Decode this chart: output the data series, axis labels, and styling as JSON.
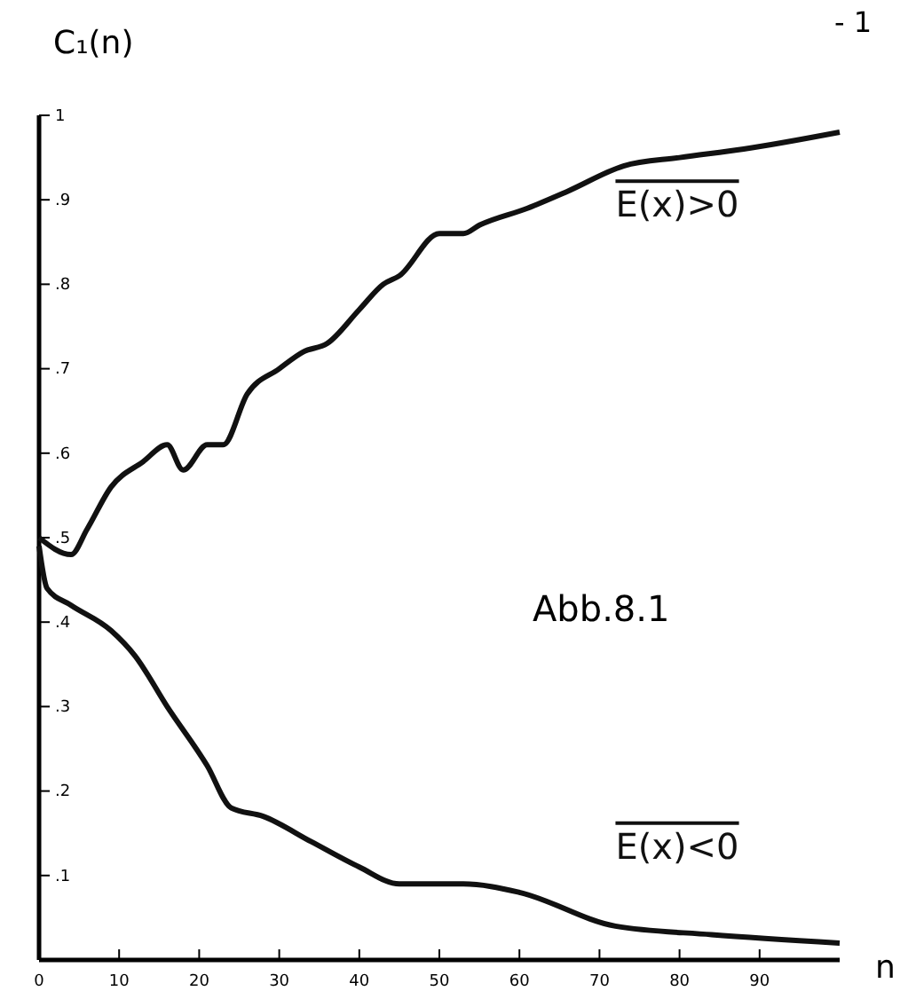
{
  "chart_data": {
    "type": "line",
    "xlabel": "n",
    "ylabel": "C₁(n)",
    "xlim": [
      0,
      100
    ],
    "ylim": [
      0,
      1
    ],
    "xticks": [
      0,
      10,
      20,
      30,
      40,
      50,
      60,
      70,
      80,
      90
    ],
    "yticks": [
      {
        "value": 0.1,
        "label": ".1"
      },
      {
        "value": 0.2,
        "label": ".2"
      },
      {
        "value": 0.3,
        "label": ".3"
      },
      {
        "value": 0.4,
        "label": ".4"
      },
      {
        "value": 0.5,
        "label": ".5"
      },
      {
        "value": 0.6,
        "label": ".6"
      },
      {
        "value": 0.7,
        "label": ".7"
      },
      {
        "value": 0.8,
        "label": ".8"
      },
      {
        "value": 0.9,
        "label": ".9"
      },
      1
    ],
    "grid": false,
    "marker": "none",
    "line_style": "solid",
    "series": [
      {
        "name": "E(x)>0",
        "color": "#111111",
        "x": [
          0,
          4,
          6,
          9,
          13,
          16,
          18,
          21,
          23,
          26,
          30,
          33,
          36,
          40,
          43,
          45,
          50,
          53,
          55,
          61,
          66,
          73,
          80,
          88,
          100
        ],
        "values": [
          0.5,
          0.48,
          0.51,
          0.56,
          0.59,
          0.61,
          0.58,
          0.61,
          0.61,
          0.67,
          0.7,
          0.72,
          0.73,
          0.77,
          0.8,
          0.81,
          0.86,
          0.86,
          0.87,
          0.89,
          0.91,
          0.94,
          0.95,
          0.96,
          0.98
        ]
      },
      {
        "name": "E(x)<0",
        "color": "#111111",
        "x": [
          0,
          1,
          4,
          9,
          12,
          16,
          21,
          24,
          28,
          34,
          40,
          45,
          48,
          53,
          60,
          72,
          84,
          100
        ],
        "values": [
          0.49,
          0.44,
          0.42,
          0.39,
          0.36,
          0.3,
          0.23,
          0.18,
          0.17,
          0.14,
          0.11,
          0.09,
          0.09,
          0.09,
          0.08,
          0.04,
          0.03,
          0.02
        ]
      }
    ],
    "annotations": [
      "Abb.8.1",
      "- 1"
    ]
  }
}
